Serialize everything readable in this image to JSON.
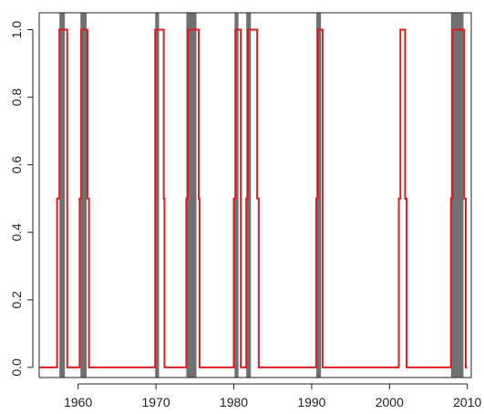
{
  "chart_data": {
    "type": "line",
    "title": "",
    "xlabel": "",
    "ylabel": "",
    "xlim": [
      1955,
      2010.5
    ],
    "ylim": [
      -0.03,
      1.05
    ],
    "x_ticks": [
      1960,
      1970,
      1980,
      1990,
      2000,
      2010
    ],
    "x_tick_labels": [
      "1960",
      "1970",
      "1980",
      "1990",
      "2000",
      "2010"
    ],
    "y_ticks": [
      0.0,
      0.2,
      0.4,
      0.6,
      0.8,
      1.0
    ],
    "y_tick_labels": [
      "0.0",
      "0.2",
      "0.4",
      "0.6",
      "0.8",
      "1.0"
    ],
    "grid": false,
    "legend": "none",
    "shaded_periods": [
      {
        "start": 1957.6,
        "end": 1958.3
      },
      {
        "start": 1960.3,
        "end": 1961.1
      },
      {
        "start": 1969.9,
        "end": 1970.4
      },
      {
        "start": 1973.9,
        "end": 1975.2
      },
      {
        "start": 1980.1,
        "end": 1980.6
      },
      {
        "start": 1981.6,
        "end": 1982.2
      },
      {
        "start": 1990.6,
        "end": 1991.2
      },
      {
        "start": 2007.9,
        "end": 2009.5
      }
    ],
    "shade_color": "#707070",
    "series": [
      {
        "color": "#e11b1b",
        "points": [
          [
            1955.0,
            0.0
          ],
          [
            1957.3,
            0.0
          ],
          [
            1957.3,
            0.5
          ],
          [
            1957.6,
            0.5
          ],
          [
            1957.6,
            1.0
          ],
          [
            1958.6,
            1.0
          ],
          [
            1958.6,
            0.0
          ],
          [
            1960.2,
            0.0
          ],
          [
            1960.2,
            0.5
          ],
          [
            1960.4,
            0.5
          ],
          [
            1960.4,
            1.0
          ],
          [
            1961.2,
            1.0
          ],
          [
            1961.2,
            0.5
          ],
          [
            1961.4,
            0.5
          ],
          [
            1961.4,
            0.0
          ],
          [
            1969.9,
            0.0
          ],
          [
            1969.9,
            1.0
          ],
          [
            1971.0,
            1.0
          ],
          [
            1971.0,
            0.5
          ],
          [
            1971.1,
            0.5
          ],
          [
            1971.1,
            0.0
          ],
          [
            1973.9,
            0.0
          ],
          [
            1973.9,
            0.5
          ],
          [
            1974.1,
            0.5
          ],
          [
            1974.1,
            1.0
          ],
          [
            1975.5,
            1.0
          ],
          [
            1975.5,
            0.5
          ],
          [
            1975.6,
            0.5
          ],
          [
            1975.6,
            0.0
          ],
          [
            1980.0,
            0.0
          ],
          [
            1980.0,
            0.5
          ],
          [
            1980.2,
            0.5
          ],
          [
            1980.2,
            1.0
          ],
          [
            1980.9,
            1.0
          ],
          [
            1980.9,
            0.0
          ],
          [
            1981.6,
            0.0
          ],
          [
            1981.6,
            0.5
          ],
          [
            1981.8,
            0.5
          ],
          [
            1981.8,
            1.0
          ],
          [
            1983.0,
            1.0
          ],
          [
            1983.0,
            0.5
          ],
          [
            1983.2,
            0.5
          ],
          [
            1983.2,
            0.0
          ],
          [
            1990.6,
            0.0
          ],
          [
            1990.6,
            0.5
          ],
          [
            1990.8,
            0.5
          ],
          [
            1990.8,
            1.0
          ],
          [
            1991.4,
            1.0
          ],
          [
            1991.4,
            0.0
          ],
          [
            2001.2,
            0.0
          ],
          [
            2001.2,
            0.5
          ],
          [
            2001.4,
            0.5
          ],
          [
            2001.4,
            1.0
          ],
          [
            2002.0,
            1.0
          ],
          [
            2002.0,
            0.5
          ],
          [
            2002.2,
            0.5
          ],
          [
            2002.2,
            0.0
          ],
          [
            2007.9,
            0.0
          ],
          [
            2007.9,
            0.5
          ],
          [
            2008.1,
            0.5
          ],
          [
            2008.1,
            1.0
          ],
          [
            2009.6,
            1.0
          ],
          [
            2009.6,
            0.5
          ],
          [
            2009.8,
            0.5
          ],
          [
            2009.8,
            0.0
          ],
          [
            2010.0,
            0.0
          ]
        ]
      }
    ]
  }
}
